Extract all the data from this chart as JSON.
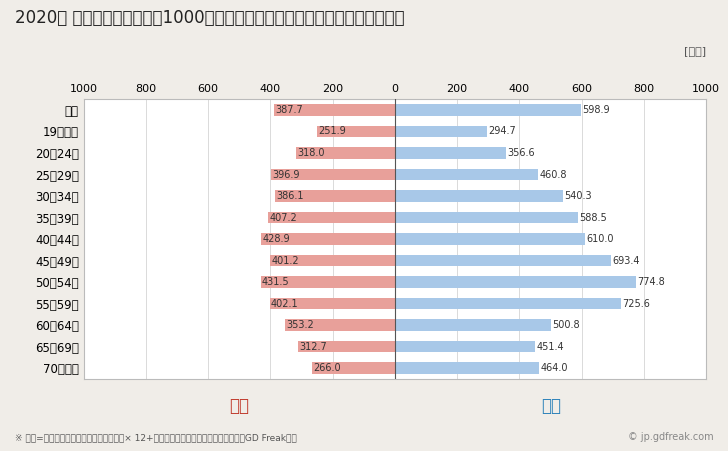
{
  "title": "2020年 民間企業（従業者数1000人以上）フルタイム労働者の男女別平均年収",
  "unit_label": "[万円]",
  "categories": [
    "全体",
    "19歳以下",
    "20～24歳",
    "25～29歳",
    "30～34歳",
    "35～39歳",
    "40～44歳",
    "45～49歳",
    "50～54歳",
    "55～59歳",
    "60～64歳",
    "65～69歳",
    "70歳以上"
  ],
  "female_values": [
    387.7,
    251.9,
    318.0,
    396.9,
    386.1,
    407.2,
    428.9,
    401.2,
    431.5,
    402.1,
    353.2,
    312.7,
    266.0
  ],
  "male_values": [
    598.9,
    294.7,
    356.6,
    460.8,
    540.3,
    588.5,
    610.0,
    693.4,
    774.8,
    725.6,
    500.8,
    451.4,
    464.0
  ],
  "female_color": "#e8a09a",
  "male_color": "#a8c8e8",
  "female_label": "女性",
  "male_label": "男性",
  "female_label_color": "#c0392b",
  "male_label_color": "#2980b9",
  "xlim": 1000,
  "background_color": "#f0ede8",
  "plot_bg_color": "#ffffff",
  "grid_color": "#cccccc",
  "footnote": "※ 年収=」きまって支給する現金給与額『× 12+『年間賞与その他特別給与額』としてGD Freak推計",
  "watermark": "© jp.gdfreak.com",
  "title_fontsize": 12,
  "bar_height": 0.55
}
